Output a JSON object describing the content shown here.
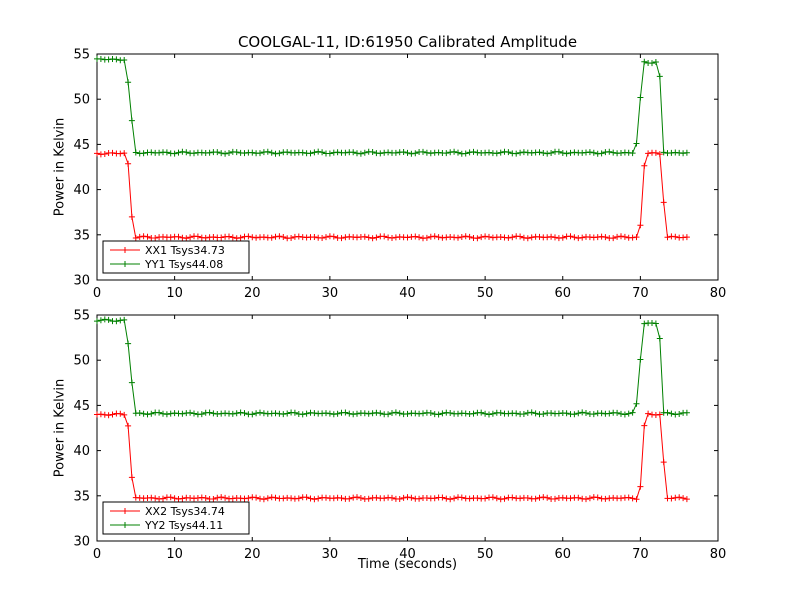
{
  "figure": {
    "title": "COOLGAL-11, ID:61950 Calibrated Amplitude",
    "background": "#ffffff"
  },
  "chart_data": [
    {
      "type": "line",
      "title": "",
      "xlabel": "",
      "ylabel": "Power in Kelvin",
      "xlim": [
        0,
        80
      ],
      "ylim": [
        30,
        55
      ],
      "xticks": [
        0,
        10,
        20,
        30,
        40,
        50,
        60,
        70,
        80
      ],
      "yticks": [
        30,
        35,
        40,
        45,
        50,
        55
      ],
      "grid": false,
      "legend_position": "lower-left",
      "legend_entries": [
        "XX1 Tsys34.73",
        "YY1 Tsys44.08"
      ],
      "series": [
        {
          "name": "XX1 Tsys34.73",
          "color": "#ff0000",
          "marker": "+",
          "sample_step": 0.5,
          "t_end": 76,
          "scatter": 0.12,
          "segments": [
            {
              "t0": 0.0,
              "t1": 3.9,
              "value": 44.0
            },
            {
              "t0": 4.7,
              "t1": 69.9,
              "value": 34.73
            },
            {
              "t0": 70.6,
              "t1": 72.6,
              "value": 44.0
            },
            {
              "t0": 73.3,
              "t1": 76.0,
              "value": 34.73
            }
          ]
        },
        {
          "name": "YY1 Tsys44.08",
          "color": "#008000",
          "marker": "+",
          "sample_step": 0.5,
          "t_end": 76,
          "scatter": 0.12,
          "segments": [
            {
              "t0": 0.0,
              "t1": 3.7,
              "value": 54.4
            },
            {
              "t0": 4.9,
              "t1": 69.4,
              "value": 44.08
            },
            {
              "t0": 70.4,
              "t1": 72.4,
              "value": 54.1
            },
            {
              "t0": 73.0,
              "t1": 76.0,
              "value": 44.08
            }
          ]
        }
      ]
    },
    {
      "type": "line",
      "title": "",
      "xlabel": "Time (seconds)",
      "ylabel": "Power in Kelvin",
      "xlim": [
        0,
        80
      ],
      "ylim": [
        30,
        55
      ],
      "xticks": [
        0,
        10,
        20,
        30,
        40,
        50,
        60,
        70,
        80
      ],
      "yticks": [
        30,
        35,
        40,
        45,
        50,
        55
      ],
      "grid": false,
      "legend_position": "lower-left",
      "legend_entries": [
        "XX2 Tsys34.74",
        "YY2 Tsys44.11"
      ],
      "series": [
        {
          "name": "XX2 Tsys34.74",
          "color": "#ff0000",
          "marker": "+",
          "sample_step": 0.5,
          "t_end": 76,
          "scatter": 0.12,
          "segments": [
            {
              "t0": 0.0,
              "t1": 3.9,
              "value": 44.0
            },
            {
              "t0": 4.7,
              "t1": 69.9,
              "value": 34.74
            },
            {
              "t0": 70.6,
              "t1": 72.6,
              "value": 44.0
            },
            {
              "t0": 73.3,
              "t1": 76.0,
              "value": 34.74
            }
          ]
        },
        {
          "name": "YY2 Tsys44.11",
          "color": "#008000",
          "marker": "+",
          "sample_step": 0.5,
          "t_end": 76,
          "scatter": 0.12,
          "segments": [
            {
              "t0": 0.0,
              "t1": 3.7,
              "value": 54.4
            },
            {
              "t0": 4.9,
              "t1": 69.4,
              "value": 44.11
            },
            {
              "t0": 70.4,
              "t1": 72.4,
              "value": 54.1
            },
            {
              "t0": 73.0,
              "t1": 76.0,
              "value": 44.11
            }
          ]
        }
      ]
    }
  ]
}
